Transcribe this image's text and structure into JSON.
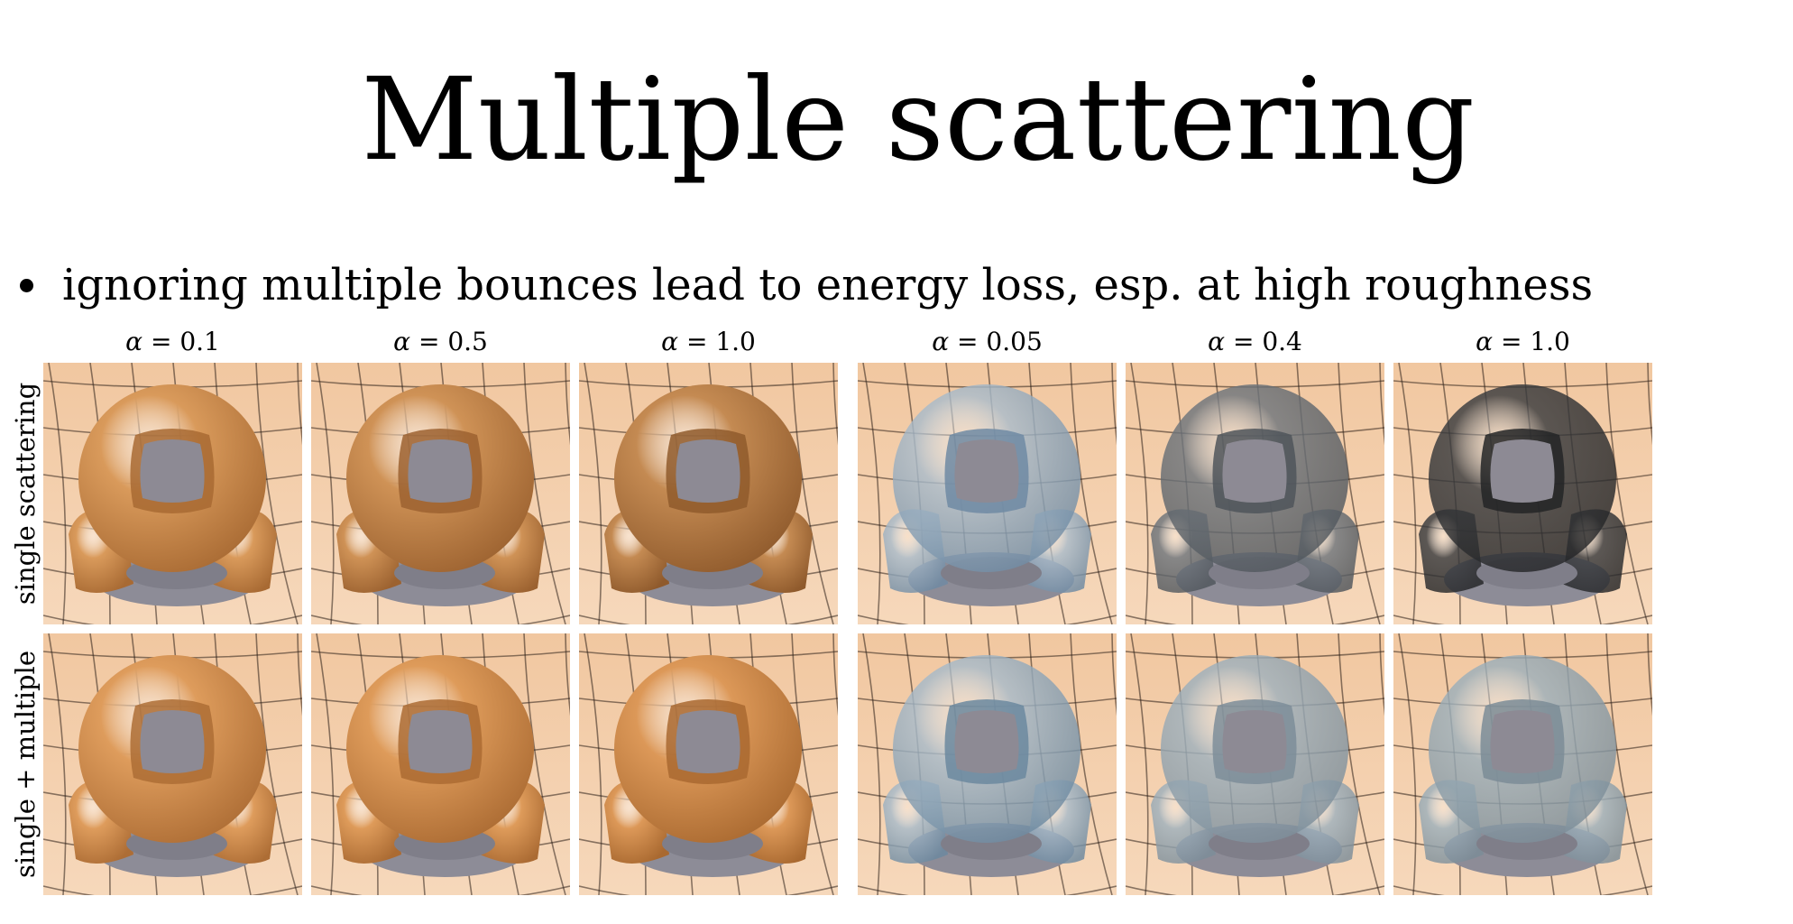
{
  "slide": {
    "title": "Multiple scattering",
    "bullet": "ignoring multiple bounces lead to energy loss, esp. at high roughness"
  },
  "figure": {
    "columns": [
      {
        "alpha_symbol": "α",
        "eq": " = 0.1"
      },
      {
        "alpha_symbol": "α",
        "eq": " = 0.5"
      },
      {
        "alpha_symbol": "α",
        "eq": " = 1.0"
      },
      {
        "alpha_symbol": "α",
        "eq": " = 0.05"
      },
      {
        "alpha_symbol": "α",
        "eq": " = 0.4"
      },
      {
        "alpha_symbol": "α",
        "eq": " = 1.0"
      }
    ],
    "rows": [
      {
        "label": "single scattering"
      },
      {
        "label": "single + multiple"
      }
    ],
    "tiles": [
      {
        "material": "diffuse-copper",
        "color": "#d99a5b",
        "edge": "#a86a33"
      },
      {
        "material": "diffuse-copper",
        "color": "#cf9256",
        "edge": "#9c6230"
      },
      {
        "material": "diffuse-copper",
        "color": "#c48a52",
        "edge": "#8f5a2c"
      },
      {
        "material": "glass",
        "color": "#aabccb",
        "edge": "#6e8aa3"
      },
      {
        "material": "glass",
        "color": "#6f767d",
        "edge": "#4f555b"
      },
      {
        "material": "glass",
        "color": "#3a3c3f",
        "edge": "#232426"
      },
      {
        "material": "diffuse-copper",
        "color": "#de9c5c",
        "edge": "#ad6d35"
      },
      {
        "material": "diffuse-copper",
        "color": "#de9b5a",
        "edge": "#ab6b33"
      },
      {
        "material": "diffuse-copper",
        "color": "#dc9858",
        "edge": "#a96930"
      },
      {
        "material": "glass",
        "color": "#a8bbca",
        "edge": "#6b889f"
      },
      {
        "material": "glass",
        "color": "#9fb1bd",
        "edge": "#7c8d99"
      },
      {
        "material": "glass",
        "color": "#9db0bb",
        "edge": "#7b8c97"
      }
    ]
  }
}
